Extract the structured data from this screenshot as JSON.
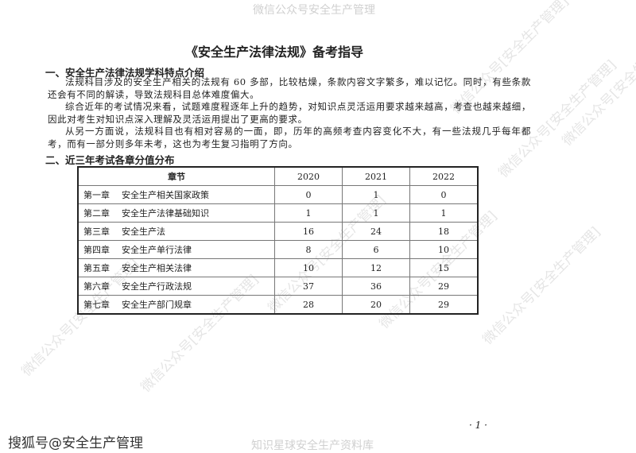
{
  "watermarks": {
    "top": "微信公众号安全生产管理",
    "bottom": "知识星球安全生产资料库",
    "diagonal": "微信公众号[安全生产管理]",
    "source": "搜狐号@安全生产管理"
  },
  "document": {
    "title": "《安全生产法律法规》备考指导",
    "section1": {
      "heading": "一、安全生产法律法规学科特点介绍",
      "paragraphs": [
        "法规科目涉及的安全生产相关的法规有 60 多部，比较枯燥，条款内容文字繁多，难以记忆。同时，有些条款还会有不同的解读，导致法规科目总体难度偏大。",
        "综合近年的考试情况来看，试题难度程逐年上升的趋势，对知识点灵活运用要求越来越高，考查也越来越细，因此对考生对知识点深入理解及灵活运用提出了更高的要求。",
        "从另一方面说，法规科目也有相对容易的一面，即，历年的高频考查内容变化不大，有一些法规几乎每年都考，而有一部分则多年未考，这也为考生复习指明了方向。"
      ]
    },
    "section2": {
      "heading": "二、近三年考试各章分值分布",
      "table": {
        "headers": [
          "章节",
          "2020",
          "2021",
          "2022"
        ],
        "rows": [
          {
            "chapter": "第一章",
            "name": "安全生产相关国家政策",
            "v2020": "0",
            "v2021": "1",
            "v2022": "0"
          },
          {
            "chapter": "第二章",
            "name": "安全生产法律基础知识",
            "v2020": "1",
            "v2021": "1",
            "v2022": "1"
          },
          {
            "chapter": "第三章",
            "name": "安全生产法",
            "v2020": "16",
            "v2021": "24",
            "v2022": "18"
          },
          {
            "chapter": "第四章",
            "name": "安全生产单行法律",
            "v2020": "8",
            "v2021": "6",
            "v2022": "10"
          },
          {
            "chapter": "第五章",
            "name": "安全生产相关法律",
            "v2020": "10",
            "v2021": "12",
            "v2022": "15"
          },
          {
            "chapter": "第六章",
            "name": "安全生产行政法规",
            "v2020": "37",
            "v2021": "36",
            "v2022": "29"
          },
          {
            "chapter": "第七章",
            "name": "安全生产部门规章",
            "v2020": "28",
            "v2021": "20",
            "v2022": "29"
          }
        ]
      }
    },
    "page_number": "· 1 ·"
  }
}
